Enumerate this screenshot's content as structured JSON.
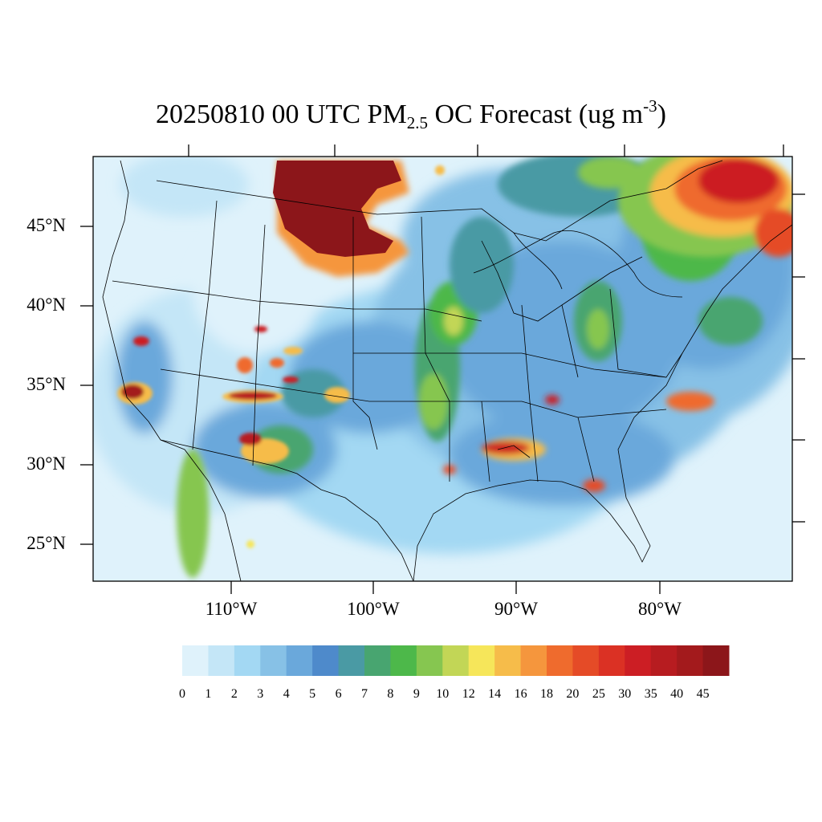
{
  "title": {
    "date": "20250810",
    "hour": "00 UTC PM",
    "sub": "2.5",
    "mid": " OC Forecast (ug m",
    "sup": "-3",
    "end": ")"
  },
  "lat_labels": [
    "45°N",
    "40°N",
    "35°N",
    "30°N",
    "25°N"
  ],
  "lon_labels": [
    "110°W",
    "100°W",
    "90°W",
    "80°W"
  ],
  "colorbar": {
    "labels": [
      "0",
      "1",
      "2",
      "3",
      "4",
      "5",
      "6",
      "7",
      "8",
      "9",
      "10",
      "12",
      "14",
      "16",
      "18",
      "20",
      "25",
      "30",
      "35",
      "40",
      "45"
    ],
    "colors": [
      "#dff2fb",
      "#c4e6f7",
      "#a3d8f3",
      "#87c1e6",
      "#6aa8db",
      "#4e8acb",
      "#4a9aa4",
      "#48a570",
      "#4db84a",
      "#86c650",
      "#c2d656",
      "#f6e65a",
      "#f6bc4a",
      "#f5963d",
      "#ef6b2d",
      "#e54b27",
      "#db3124",
      "#cc1e24",
      "#b71c20",
      "#a31a1c",
      "#8c161a"
    ]
  }
}
